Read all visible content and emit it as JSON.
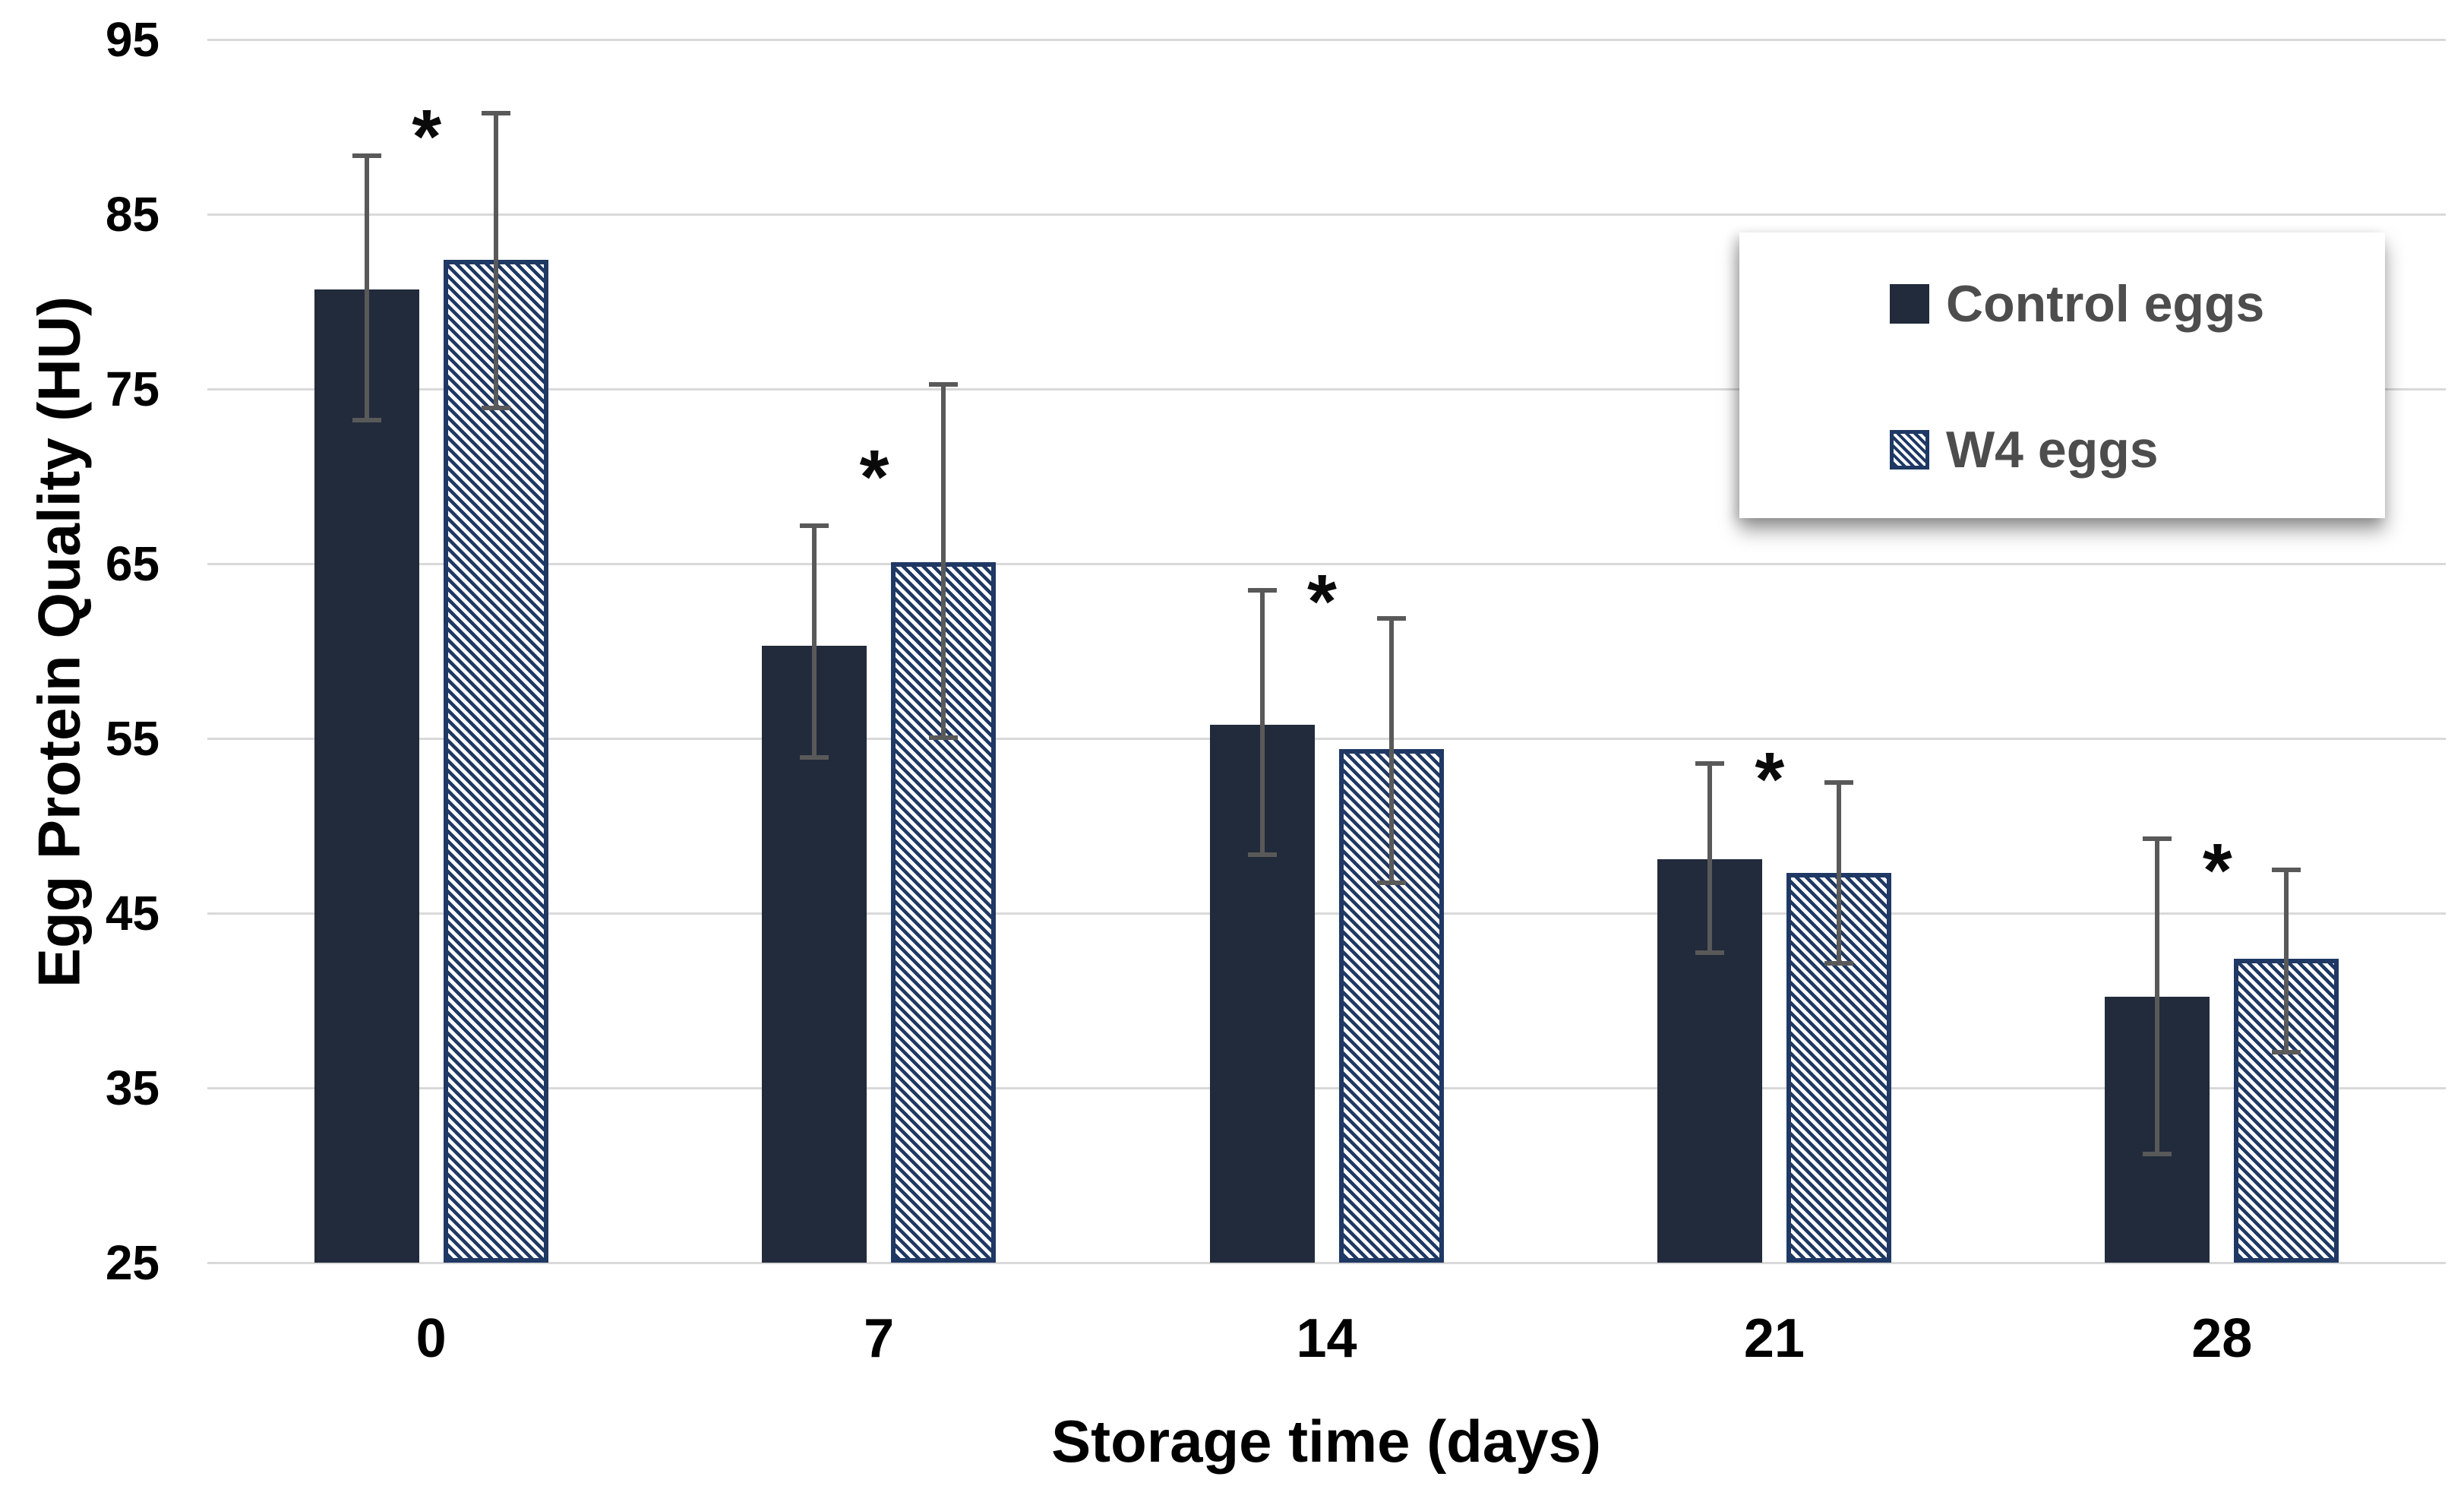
{
  "chart_data": {
    "type": "bar",
    "title": "",
    "xlabel": "Storage time (days)",
    "ylabel": "Egg Protein Quality (HU)",
    "categories": [
      "0",
      "7",
      "14",
      "21",
      "28"
    ],
    "ylim": [
      25,
      95
    ],
    "y_ticks": [
      25,
      35,
      45,
      55,
      65,
      75,
      85,
      95
    ],
    "grid": true,
    "legend_position": "upper-right",
    "gridline_color": "#D9D9D9",
    "error_bar_color": "#595959",
    "series": [
      {
        "name": "Control eggs",
        "style": "solid",
        "color": "#222B3B",
        "values": [
          80.7,
          60.3,
          55.8,
          48.1,
          40.2
        ],
        "error_up": [
          7.8,
          7.0,
          7.8,
          5.6,
          9.2
        ],
        "error_down": [
          7.6,
          6.5,
          7.6,
          5.5,
          9.1
        ]
      },
      {
        "name": "W4 eggs",
        "style": "diagonal-hatch",
        "color": "#1F3864",
        "values": [
          82.4,
          65.1,
          54.4,
          47.3,
          42.4
        ],
        "error_up": [
          8.5,
          10.3,
          7.6,
          5.3,
          5.2
        ],
        "error_down": [
          8.6,
          10.2,
          7.8,
          5.3,
          5.5
        ]
      }
    ],
    "significance_markers": {
      "symbol": "*",
      "categories": [
        "0",
        "7",
        "14",
        "21",
        "28"
      ],
      "y_positions": [
        90.1,
        70.6,
        63.5,
        53.3,
        48.1
      ]
    }
  }
}
